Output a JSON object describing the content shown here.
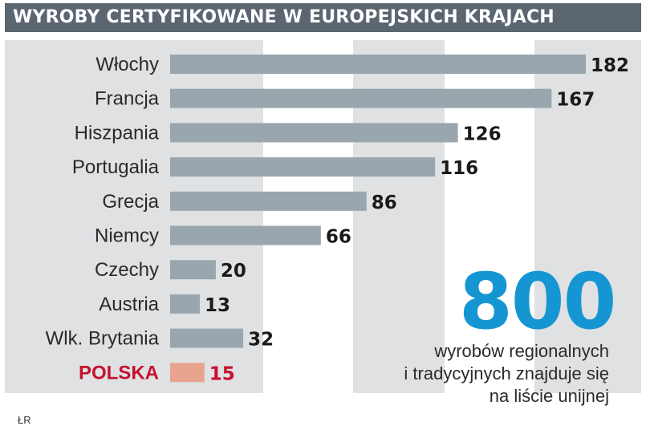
{
  "header": {
    "title": "WYROBY CERTYFIKOWANE W EUROPEJSKICH KRAJACH"
  },
  "chart_data": {
    "type": "bar",
    "orientation": "horizontal",
    "categories": [
      "Włochy",
      "Francja",
      "Hiszpania",
      "Portugalia",
      "Grecja",
      "Niemcy",
      "Czechy",
      "Austria",
      "Wlk. Brytania",
      "POLSKA"
    ],
    "values": [
      182,
      167,
      126,
      116,
      86,
      66,
      20,
      13,
      32,
      15
    ],
    "highlight_category": "POLSKA",
    "bar_color": "#9aa6ae",
    "highlight_color": "#e8a48e",
    "highlight_label_color": "#c8102e",
    "xlim": [
      0,
      182
    ],
    "title": "WYROBY CERTYFIKOWANE W EUROPEJSKICH KRAJACH",
    "xlabel": "",
    "ylabel": "",
    "grid": true
  },
  "callout": {
    "number": "800",
    "lines": [
      "wyrobów regionalnych",
      "i tradycyjnych znajduje się",
      "na liście unijnej"
    ],
    "color": "#1596d2"
  },
  "source": "ŁR"
}
